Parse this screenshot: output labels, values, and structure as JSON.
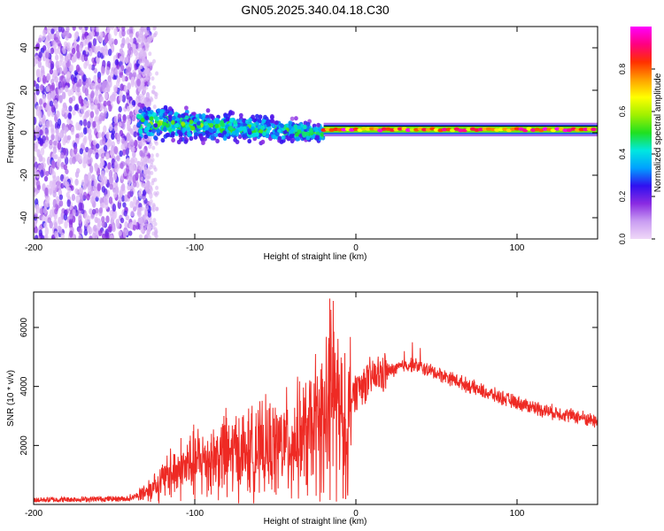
{
  "title": "GN05.2025.340.04.18.C30",
  "chart_data": [
    {
      "type": "heatmap",
      "name": "spectrogram",
      "xlabel": "Height of straight line (km)",
      "ylabel": "Frequency (Hz)",
      "xlim": [
        -200,
        150
      ],
      "ylim": [
        -50,
        50
      ],
      "xticks": [
        -200,
        -100,
        0,
        100
      ],
      "yticks": [
        -40,
        -20,
        0,
        20,
        40
      ],
      "colorbar": {
        "label": "Normalized spectral amplitude",
        "range": [
          0,
          1
        ],
        "ticks": [
          "0.0",
          "0.2",
          "0.4",
          "0.6",
          "0.8"
        ],
        "colors": [
          "#f0d8f8",
          "#c99df2",
          "#8a2be2",
          "#3010f0",
          "#00a0ff",
          "#00e8e0",
          "#20e020",
          "#a0f000",
          "#ffff00",
          "#ffa000",
          "#ff3000",
          "#ff0080",
          "#ff00ff"
        ]
      },
      "regions": [
        {
          "from_km": -200,
          "to_km": -135,
          "freq_range": [
            -50,
            50
          ],
          "amplitude": "low, scattered noise"
        },
        {
          "from_km": -135,
          "to_km": -20,
          "freq_center_start": 5,
          "freq_center_end": 0,
          "spread_hz": 12,
          "amplitude": "medium"
        },
        {
          "from_km": -20,
          "to_km": 150,
          "freq_center": 1.5,
          "amplitude": "high (0.8-1.0), narrow tone"
        }
      ]
    },
    {
      "type": "line",
      "name": "snr",
      "xlabel": "Height of straight line (km)",
      "ylabel": "SNR (10 * v/v)",
      "xlim": [
        -200,
        150
      ],
      "ylim": [
        0,
        7200
      ],
      "xticks": [
        -200,
        -100,
        0,
        100
      ],
      "yticks": [
        2000,
        4000,
        6000
      ],
      "color": "#ee2a24",
      "envelope": {
        "x": [
          -200,
          -140,
          -125,
          -110,
          -95,
          -80,
          -60,
          -40,
          -25,
          -18,
          -15,
          -12,
          -8,
          -5,
          -3,
          0,
          5,
          10,
          20,
          30,
          35,
          40,
          50,
          60,
          80,
          100,
          120,
          140,
          150
        ],
        "y": [
          150,
          200,
          600,
          1200,
          1500,
          1700,
          1800,
          2100,
          2500,
          3200,
          4000,
          3500,
          2600,
          2700,
          3600,
          3900,
          4100,
          4300,
          4500,
          4700,
          4750,
          4650,
          4450,
          4250,
          3800,
          3450,
          3150,
          2950,
          2800
        ]
      },
      "peaks": {
        "x": [
          -140,
          -125,
          -115,
          -100,
          -82,
          -75,
          -62,
          -55,
          -40,
          -30,
          -25,
          -16,
          -15.5,
          -14,
          -12,
          -8,
          -5,
          -3,
          5,
          30,
          35,
          40
        ],
        "y": [
          350,
          1050,
          1900,
          2400,
          3000,
          2700,
          3100,
          3200,
          3200,
          3200,
          5100,
          7100,
          6600,
          6900,
          3600,
          5400,
          5700,
          5300,
          4600,
          5200,
          5500,
          5300
        ]
      },
      "troughs": {
        "x": [
          -100,
          -80,
          -60,
          -40,
          -30,
          -20,
          -16,
          -12,
          -8,
          -6,
          -5,
          -3
        ],
        "y": [
          150,
          250,
          400,
          200,
          300,
          400,
          150,
          100,
          200,
          2100,
          300,
          2000
        ]
      }
    }
  ]
}
